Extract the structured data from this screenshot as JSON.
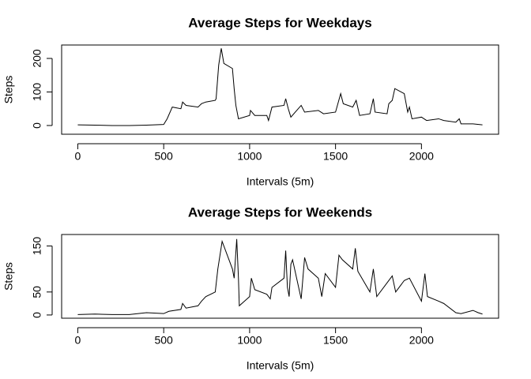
{
  "chart_data": [
    {
      "type": "line",
      "title": "Average Steps for Weekdays",
      "xlabel": "Intervals (5m)",
      "ylabel": "Steps",
      "color": "#000000",
      "x": [
        0,
        100,
        200,
        300,
        400,
        500,
        520,
        550,
        600,
        610,
        630,
        700,
        720,
        745,
        800,
        805,
        820,
        835,
        850,
        900,
        910,
        920,
        935,
        1000,
        1005,
        1030,
        1100,
        1110,
        1130,
        1200,
        1210,
        1225,
        1240,
        1300,
        1320,
        1400,
        1430,
        1500,
        1530,
        1545,
        1600,
        1620,
        1640,
        1700,
        1720,
        1730,
        1800,
        1810,
        1830,
        1845,
        1900,
        1920,
        1930,
        1945,
        2000,
        2030,
        2100,
        2130,
        2200,
        2220,
        2230,
        2300,
        2355
      ],
      "values": [
        2,
        1,
        0,
        0,
        1,
        3,
        20,
        55,
        50,
        70,
        60,
        55,
        65,
        70,
        75,
        80,
        180,
        230,
        185,
        170,
        110,
        60,
        20,
        30,
        45,
        30,
        30,
        15,
        55,
        60,
        80,
        50,
        25,
        60,
        40,
        45,
        35,
        40,
        95,
        65,
        55,
        75,
        30,
        35,
        80,
        40,
        35,
        65,
        75,
        110,
        95,
        40,
        55,
        20,
        25,
        15,
        20,
        15,
        10,
        20,
        5,
        5,
        2
      ],
      "xlim": [
        -94,
        2449
      ],
      "ylim": [
        -26,
        240
      ],
      "xticks": [
        0,
        500,
        1000,
        1500,
        2000
      ],
      "yticks": [
        0,
        100,
        200
      ]
    },
    {
      "type": "line",
      "title": "Average Steps for Weekends",
      "xlabel": "Intervals (5m)",
      "ylabel": "Steps",
      "color": "#000000",
      "x": [
        0,
        100,
        200,
        300,
        400,
        500,
        530,
        600,
        610,
        630,
        700,
        720,
        745,
        800,
        815,
        840,
        900,
        910,
        925,
        935,
        940,
        1000,
        1010,
        1030,
        1100,
        1120,
        1130,
        1200,
        1210,
        1220,
        1230,
        1240,
        1250,
        1300,
        1320,
        1340,
        1400,
        1420,
        1440,
        1500,
        1520,
        1540,
        1600,
        1615,
        1630,
        1700,
        1720,
        1740,
        1800,
        1830,
        1850,
        1900,
        1930,
        2000,
        2020,
        2035,
        2100,
        2130,
        2200,
        2230,
        2300,
        2330,
        2355
      ],
      "values": [
        1,
        2,
        1,
        1,
        5,
        3,
        8,
        12,
        25,
        15,
        20,
        30,
        40,
        50,
        100,
        160,
        100,
        80,
        165,
        80,
        20,
        40,
        80,
        55,
        45,
        35,
        60,
        80,
        140,
        60,
        40,
        110,
        120,
        35,
        125,
        100,
        80,
        40,
        90,
        60,
        130,
        120,
        100,
        145,
        95,
        50,
        100,
        40,
        70,
        85,
        50,
        75,
        80,
        30,
        90,
        40,
        30,
        25,
        5,
        3,
        10,
        5,
        2
      ],
      "xlim": [
        -94,
        2449
      ],
      "ylim": [
        -7,
        175
      ],
      "xticks": [
        0,
        500,
        1000,
        1500,
        2000
      ],
      "yticks": [
        0,
        50,
        150
      ]
    }
  ]
}
